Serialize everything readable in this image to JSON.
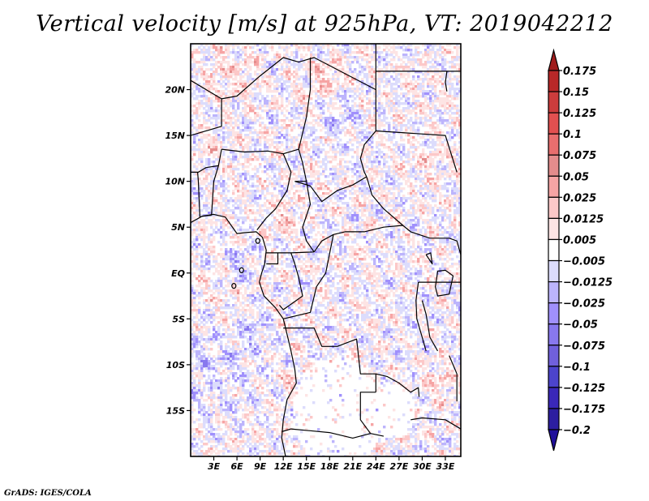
{
  "title": "Vertical velocity [m/s] at 925hPa, VT: 2019042212",
  "footer": "GrADS: IGES/COLA",
  "map": {
    "variable": "Vertical velocity",
    "units": "m/s",
    "level": "925hPa",
    "valid_time": "2019042212",
    "lon_range": [
      0,
      35
    ],
    "lat_range": [
      -20,
      25
    ],
    "lat_ticks": [
      {
        "value": 20,
        "label": "20N"
      },
      {
        "value": 15,
        "label": "15N"
      },
      {
        "value": 10,
        "label": "10N"
      },
      {
        "value": 5,
        "label": "5N"
      },
      {
        "value": 0,
        "label": "EQ"
      },
      {
        "value": -5,
        "label": "5S"
      },
      {
        "value": -10,
        "label": "10S"
      },
      {
        "value": -15,
        "label": "15S"
      }
    ],
    "lon_ticks": [
      {
        "value": 3,
        "label": "3E"
      },
      {
        "value": 6,
        "label": "6E"
      },
      {
        "value": 9,
        "label": "9E"
      },
      {
        "value": 12,
        "label": "12E"
      },
      {
        "value": 15,
        "label": "15E"
      },
      {
        "value": 18,
        "label": "18E"
      },
      {
        "value": 21,
        "label": "21E"
      },
      {
        "value": 24,
        "label": "24E"
      },
      {
        "value": 27,
        "label": "27E"
      },
      {
        "value": 30,
        "label": "30E"
      },
      {
        "value": 33,
        "label": "33E"
      }
    ]
  },
  "colorbar": {
    "labels": [
      "0.175",
      "0.15",
      "0.125",
      "0.1",
      "0.075",
      "0.05",
      "0.025",
      "0.0125",
      "0.005",
      "−0.005",
      "−0.0125",
      "−0.025",
      "−0.05",
      "−0.075",
      "−0.1",
      "−0.125",
      "−0.175",
      "−0.2"
    ],
    "colors": [
      "#a01c1c",
      "#b82828",
      "#cc3c3c",
      "#e25050",
      "#e86e6e",
      "#e48c8c",
      "#f6a4a4",
      "#fcc8c8",
      "#fde4e4",
      "#ffffff",
      "#dcdcfc",
      "#bcb4fc",
      "#a090fc",
      "#8878ee",
      "#7060dc",
      "#4c44cc",
      "#3a28b8",
      "#2c1ea0",
      "#20109a"
    ]
  }
}
